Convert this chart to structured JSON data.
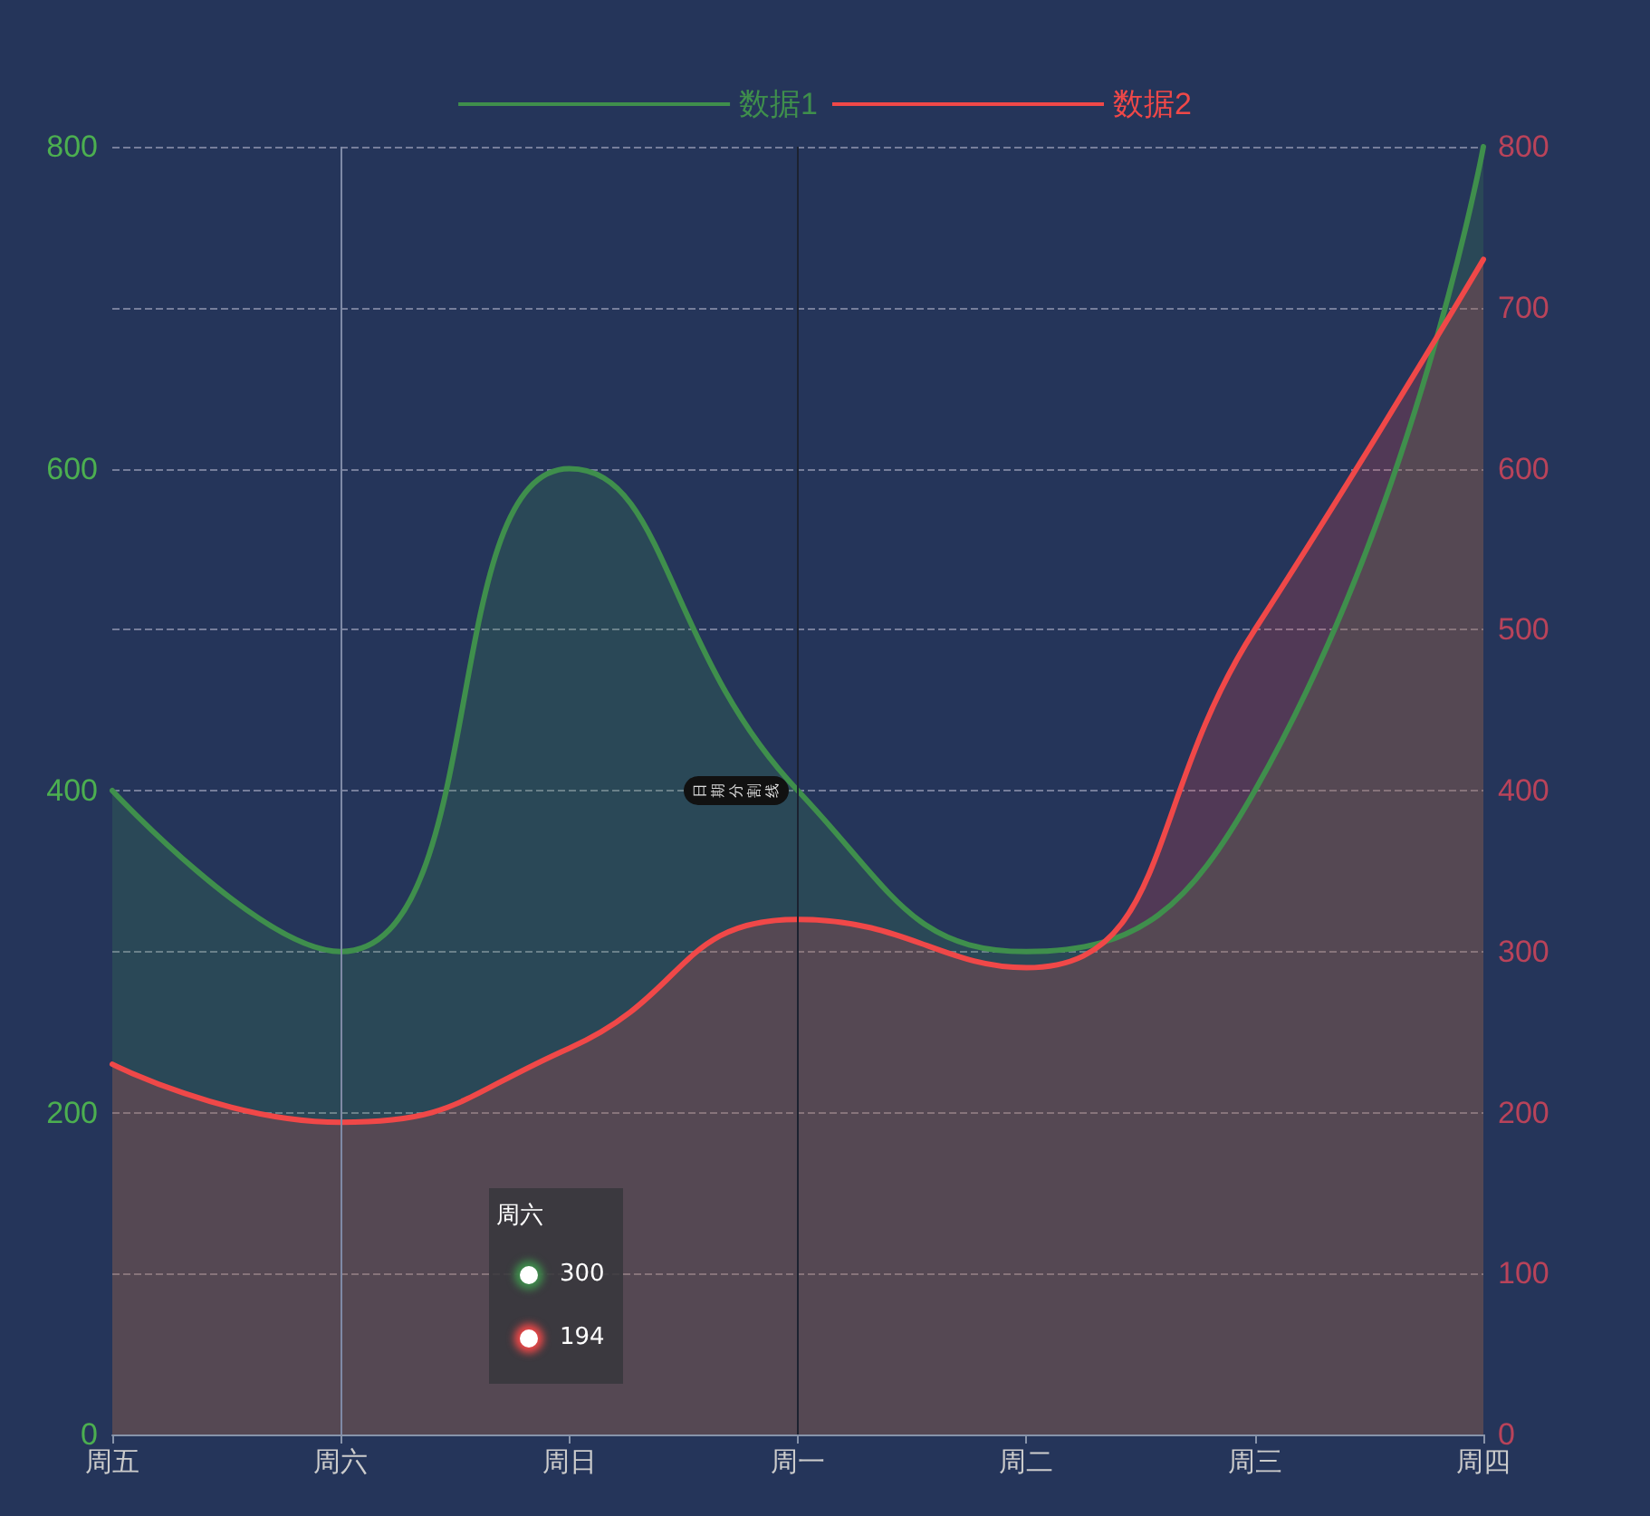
{
  "chart_data": {
    "type": "area",
    "categories": [
      "周五",
      "周六",
      "周日",
      "周一",
      "周二",
      "周三",
      "周四"
    ],
    "series": [
      {
        "name": "数据1",
        "color": "#3f8f4c",
        "values": [
          400,
          300,
          600,
          400,
          300,
          400,
          800
        ]
      },
      {
        "name": "数据2",
        "color": "#f04848",
        "values": [
          230,
          194,
          240,
          320,
          290,
          500,
          730
        ]
      }
    ],
    "ylim": [
      0,
      800
    ],
    "yticks": [
      0,
      200,
      400,
      600,
      800
    ],
    "y2lim": [
      0,
      800
    ],
    "y2ticks": [
      0,
      100,
      200,
      300,
      400,
      500,
      600,
      700,
      800
    ],
    "ref_lines": [
      {
        "axis": "x",
        "value": "周一",
        "label": "日期分割线",
        "color": "#1c2230"
      },
      {
        "axis": "x",
        "value": "周六",
        "color": "#7f8aa6"
      }
    ],
    "annotations": [
      "300",
      "194"
    ],
    "grid": "y",
    "legend": "top",
    "marker": "none",
    "line_style": "solid"
  }
}
